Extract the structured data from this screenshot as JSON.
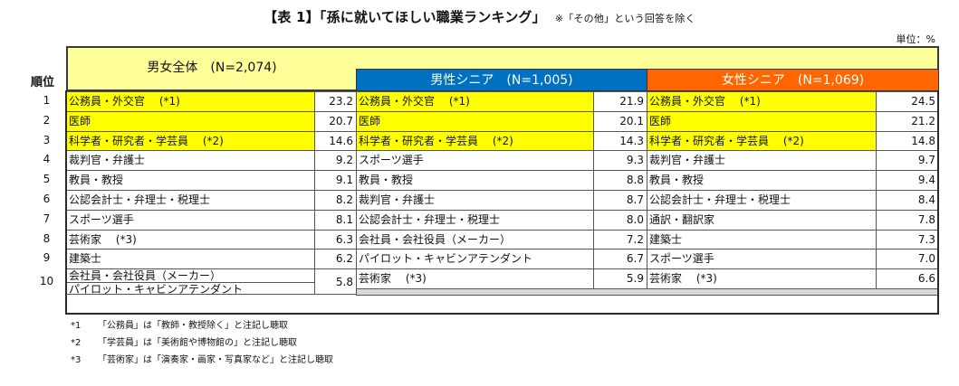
{
  "title": "【表 1】「孫に就いてほしい職業ランキング」",
  "title_note": "※「その他」という回答を除く",
  "unit": "単位：%",
  "rank_header": "順位",
  "groups": {
    "all": "男女全体　(N=2,074)",
    "male": "男性シニア　(N=1,005)",
    "female": "女性シニア　(N=1,069)"
  },
  "colors": {
    "header_yellow": "#ffff99",
    "highlight": "#ffff00",
    "male": "#0070c0",
    "female": "#ff6600",
    "empty": "#d9d9d9"
  },
  "rows": [
    {
      "rank": "1",
      "all": {
        "name": "公務員・外交官　 (*1)",
        "value": "23.2"
      },
      "male": {
        "name": "公務員・外交官　 (*1)",
        "value": "21.9"
      },
      "female": {
        "name": "公務員・外交官　 (*1)",
        "value": "24.5"
      }
    },
    {
      "rank": "2",
      "all": {
        "name": "医師",
        "value": "20.7"
      },
      "male": {
        "name": "医師",
        "value": "20.1"
      },
      "female": {
        "name": "医師",
        "value": "21.2"
      }
    },
    {
      "rank": "3",
      "all": {
        "name": "科学者・研究者・学芸員　 (*2)",
        "value": "14.6"
      },
      "male": {
        "name": "科学者・研究者・学芸員　 (*2)",
        "value": "14.3"
      },
      "female": {
        "name": "科学者・研究者・学芸員　 (*2)",
        "value": "14.8"
      }
    },
    {
      "rank": "4",
      "all": {
        "name": "裁判官・弁護士",
        "value": "9.2"
      },
      "male": {
        "name": "スポーツ選手",
        "value": "9.3"
      },
      "female": {
        "name": "裁判官・弁護士",
        "value": "9.7"
      }
    },
    {
      "rank": "5",
      "all": {
        "name": "教員・教授",
        "value": "9.1"
      },
      "male": {
        "name": "教員・教授",
        "value": "8.8"
      },
      "female": {
        "name": "教員・教授",
        "value": "9.4"
      }
    },
    {
      "rank": "6",
      "all": {
        "name": "公認会計士・弁理士・税理士",
        "value": "8.2"
      },
      "male": {
        "name": "裁判官・弁護士",
        "value": "8.7"
      },
      "female": {
        "name": "公認会計士・弁理士・税理士",
        "value": "8.4"
      }
    },
    {
      "rank": "7",
      "all": {
        "name": "スポーツ選手",
        "value": "8.1"
      },
      "male": {
        "name": "公認会計士・弁理士・税理士",
        "value": "8.0"
      },
      "female": {
        "name": "通訳・翻訳家",
        "value": "7.8"
      }
    },
    {
      "rank": "8",
      "all": {
        "name": "芸術家　 (*3)",
        "value": "6.3"
      },
      "male": {
        "name": "会社員・会社役員（メーカー）",
        "value": "7.2"
      },
      "female": {
        "name": "建築士",
        "value": "7.3"
      }
    },
    {
      "rank": "9",
      "all": {
        "name": "建築士",
        "value": "6.2"
      },
      "male": {
        "name": "パイロット・キャビンアテンダント",
        "value": "6.7"
      },
      "female": {
        "name": "スポーツ選手",
        "value": "7.0"
      }
    },
    {
      "rank": "10",
      "all": {
        "names": [
          "会社員・会社役員（メーカー）",
          "パイロット・キャビンアテンダント"
        ],
        "value": "5.8"
      },
      "male": {
        "name": "芸術家　 (*3)",
        "value": "5.9"
      },
      "female": {
        "name": "芸術家　 (*3)",
        "value": "6.6"
      }
    }
  ],
  "footnotes": [
    {
      "key": "*1",
      "text": "「公務員」は「教師・教授除く」と注記し聴取"
    },
    {
      "key": "*2",
      "text": "「学芸員」は「美術館や博物館の」と注記し聴取"
    },
    {
      "key": "*3",
      "text": "「芸術家」は「演奏家・画家・写真家など」と注記し聴取"
    }
  ]
}
